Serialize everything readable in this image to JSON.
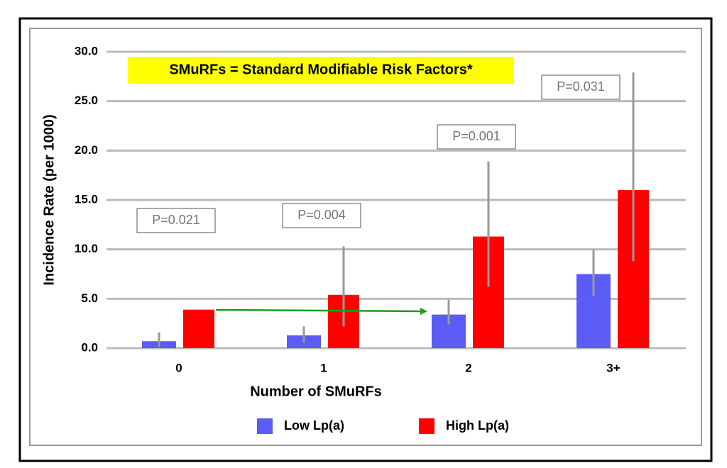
{
  "chart_data": {
    "type": "bar",
    "note": "SMuRFs = Standard Modifiable Risk Factors*",
    "x_label": "Number of SMuRFs",
    "y_label": "Incidence Rate (per 1000)",
    "categories": [
      "0",
      "1",
      "2",
      "3+"
    ],
    "series": [
      {
        "name": "Low Lp(a)",
        "color": "#5b5bf5",
        "values": [
          0.7,
          1.3,
          3.4,
          7.5
        ],
        "ci_low": [
          0.1,
          0.5,
          2.4,
          5.3
        ],
        "ci_high": [
          1.6,
          2.2,
          4.9,
          10.0
        ]
      },
      {
        "name": "High Lp(a)",
        "color": "#ff0000",
        "values": [
          3.9,
          5.4,
          11.3,
          16.0
        ],
        "ci_low": [
          null,
          2.2,
          6.2,
          8.8
        ],
        "ci_high": [
          null,
          10.3,
          18.9,
          27.9
        ]
      }
    ],
    "annotations": [
      "P=0.021",
      "P=0.004",
      "P=0.001",
      "P=0.031"
    ],
    "ylim": [
      0,
      30
    ],
    "yticks": [
      {
        "value": 0,
        "label": "0.0"
      },
      {
        "value": 5,
        "label": "5.0"
      },
      {
        "value": 10,
        "label": "10.0"
      },
      {
        "value": 15,
        "label": "15.0"
      },
      {
        "value": 20,
        "label": "20.0"
      },
      {
        "value": 25,
        "label": "25.0"
      },
      {
        "value": 30,
        "label": "30.0"
      }
    ],
    "grid": true
  }
}
